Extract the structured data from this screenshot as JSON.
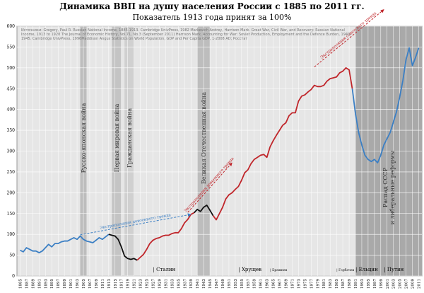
{
  "chart_data": {
    "type": "line",
    "title": "Динамика ВВП на душу населения России с 1885 по 2011 гг.",
    "subtitle": "Показатель 1913 года принят за 100%",
    "source": "Источники: Gregory, Paul R. Russian National Income, 1885-1913. Cambridge UnivPress, 1982 Markevich Andrey, Harrison Mark. Great War, Civil War, and Recovery: Russian National Income, 1913 to 1928 The Journal of Economic History, Vol.71, No.3 (September 2011) Harrison Mark. Accounting for War: Soviet Production, Employment and the Defence Burden, 1940-1945. Cambridge UnivPress, 1996Maddison Angus Statistics on World Population, GDP and Per Capita GDP, 1-2008 AD; Росстат",
    "xlim": [
      1884,
      2012
    ],
    "ylim": [
      0,
      600
    ],
    "yticks": [
      0,
      50,
      100,
      150,
      200,
      250,
      300,
      350,
      400,
      450,
      500,
      550,
      600
    ],
    "xticks": [
      1885,
      1887,
      1889,
      1891,
      1893,
      1895,
      1897,
      1899,
      1901,
      1903,
      1905,
      1907,
      1909,
      1911,
      1913,
      1915,
      1917,
      1919,
      1921,
      1923,
      1925,
      1927,
      1929,
      1931,
      1933,
      1935,
      1937,
      1939,
      1941,
      1943,
      1945,
      1947,
      1949,
      1951,
      1953,
      1955,
      1957,
      1959,
      1961,
      1963,
      1965,
      1967,
      1969,
      1971,
      1973,
      1975,
      1977,
      1979,
      1981,
      1983,
      1985,
      1987,
      1989,
      1991,
      1993,
      1995,
      1997,
      1999,
      2001,
      2003,
      2005,
      2007,
      2009,
      2011
    ],
    "grid": true,
    "series": [
      {
        "color": "#3b7fc4",
        "x": [
          1885,
          1886,
          1887,
          1888,
          1889,
          1890,
          1891,
          1892,
          1893,
          1894,
          1895,
          1896,
          1897,
          1898,
          1899,
          1900,
          1901,
          1902,
          1903,
          1904,
          1905,
          1906,
          1907,
          1908,
          1909,
          1910,
          1911,
          1912,
          1913
        ],
        "values": [
          62,
          58,
          68,
          64,
          60,
          60,
          56,
          60,
          68,
          76,
          70,
          78,
          78,
          82,
          84,
          84,
          88,
          92,
          88,
          96,
          88,
          84,
          82,
          80,
          86,
          92,
          88,
          94,
          100
        ]
      },
      {
        "color": "#111111",
        "x": [
          1913,
          1914,
          1915,
          1916,
          1917,
          1918,
          1919,
          1920,
          1921,
          1922
        ],
        "values": [
          100,
          98,
          96,
          88,
          70,
          48,
          42,
          40,
          42,
          38
        ]
      },
      {
        "color": "#c0262b",
        "x": [
          1922,
          1923,
          1924,
          1925,
          1926,
          1927,
          1928,
          1929,
          1930,
          1931,
          1932,
          1933,
          1934,
          1935,
          1936,
          1937,
          1938,
          1939,
          1940
        ],
        "values": [
          38,
          45,
          52,
          64,
          78,
          86,
          90,
          92,
          96,
          98,
          98,
          102,
          104,
          104,
          114,
          128,
          136,
          148,
          152
        ]
      },
      {
        "color": "#111111",
        "x": [
          1940,
          1941,
          1942,
          1943,
          1944,
          1945,
          1946
        ],
        "values": [
          152,
          160,
          155,
          165,
          170,
          158,
          145
        ]
      },
      {
        "color": "#c0262b",
        "x": [
          1946,
          1947,
          1948,
          1949,
          1950,
          1951,
          1952,
          1953,
          1954,
          1955,
          1956,
          1957,
          1958,
          1959,
          1960,
          1961,
          1962,
          1963,
          1964,
          1965,
          1966,
          1967,
          1968,
          1969,
          1970,
          1971,
          1972,
          1973,
          1974,
          1975,
          1976,
          1977,
          1978,
          1979,
          1980,
          1981,
          1982,
          1983,
          1984,
          1985,
          1986,
          1987,
          1988,
          1989,
          1990
        ],
        "values": [
          145,
          135,
          150,
          165,
          185,
          195,
          200,
          208,
          215,
          230,
          248,
          255,
          270,
          280,
          285,
          290,
          292,
          285,
          310,
          325,
          338,
          350,
          362,
          368,
          385,
          392,
          392,
          420,
          432,
          435,
          442,
          448,
          458,
          455,
          455,
          458,
          468,
          474,
          476,
          478,
          488,
          492,
          500,
          495,
          450
        ]
      },
      {
        "color": "#3b7fc4",
        "x": [
          1990,
          1991,
          1992,
          1993,
          1994,
          1995,
          1996,
          1997,
          1998,
          1999,
          2000,
          2001,
          2002,
          2003,
          2004,
          2005,
          2006,
          2007,
          2008,
          2009,
          2010,
          2011
        ],
        "values": [
          450,
          390,
          345,
          315,
          290,
          280,
          275,
          280,
          272,
          290,
          315,
          330,
          345,
          370,
          395,
          430,
          470,
          520,
          548,
          505,
          525,
          548
        ]
      }
    ],
    "bands": [
      {
        "from": 1904,
        "to": 1906,
        "color": "#bdbdbd",
        "label": [
          "Русско-японская война"
        ]
      },
      {
        "from": 1914,
        "to": 1917,
        "color": "#c4c4c4",
        "label": [
          "Первая мировая война"
        ]
      },
      {
        "from": 1918,
        "to": 1921,
        "color": "#d0d0d0",
        "label": [
          "Гражданская война"
        ]
      },
      {
        "from": 1941,
        "to": 1945,
        "color": "#bdbdbd",
        "label": [
          "Великая Отечественная война"
        ]
      },
      {
        "from": 1991,
        "to": 2012,
        "color": "#a9a9a9",
        "label": [
          "Распад СССР",
          "и либеральные реформы"
        ]
      }
    ],
    "leaders": [
      {
        "x": 1927,
        "label": "| Сталин"
      },
      {
        "x": 1954,
        "label": "| Хрущев"
      },
      {
        "x": 1964,
        "label": "| Брежнев"
      },
      {
        "x": 1985,
        "label": "| Горбачев"
      },
      {
        "x": 1991,
        "label": "| Ельцин"
      },
      {
        "x": 2000,
        "label": "| Путин"
      }
    ],
    "arrows": [
      {
        "label": "Экстраполяция довоенного тренда",
        "color": "#3b7fc4",
        "from": [
          1904,
          99
        ],
        "to": [
          1939,
          148
        ]
      },
      {
        "label": "Экстраполяция довоенного тренда",
        "color": "#c0262b",
        "from": [
          1938,
          153
        ],
        "to": [
          1952,
          272
        ]
      },
      {
        "label": "Экстраполяция советского тренда",
        "color": "#c0262b",
        "from": [
          1978,
          502
        ],
        "to": [
          2000,
          640
        ]
      }
    ]
  }
}
